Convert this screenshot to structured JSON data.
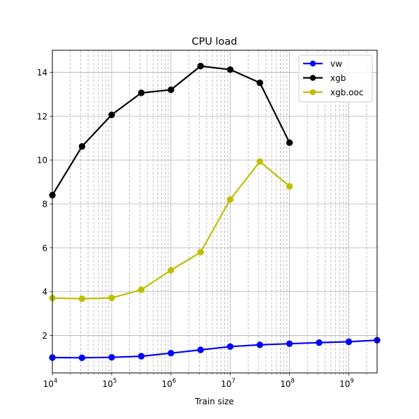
{
  "chart_data": {
    "type": "line",
    "title": "CPU load",
    "xlabel": "Train size",
    "ylabel": "",
    "xscale": "log",
    "xlim": [
      10000,
      3000000000
    ],
    "ylim": [
      0.3,
      15
    ],
    "grid": "major-solid-and-minor-dashed",
    "legend_position": "top-right",
    "yticks": [
      2,
      4,
      6,
      8,
      10,
      12,
      14
    ],
    "ytick_labels": [
      "2",
      "4",
      "6",
      "8",
      "10",
      "12",
      "14"
    ],
    "xticks": [
      {
        "base": "10",
        "exp": "4",
        "value": 10000
      },
      {
        "base": "10",
        "exp": "5",
        "value": 100000
      },
      {
        "base": "10",
        "exp": "6",
        "value": 1000000
      },
      {
        "base": "10",
        "exp": "7",
        "value": 10000000
      },
      {
        "base": "10",
        "exp": "8",
        "value": 100000000
      },
      {
        "base": "10",
        "exp": "9",
        "value": 1000000000
      }
    ],
    "series": [
      {
        "name": "vw",
        "color": "#0000ff",
        "x": [
          10000,
          31600,
          100000,
          316000,
          1000000,
          3160000,
          10000000,
          31600000,
          100000000,
          316000000,
          1000000000,
          3000000000
        ],
        "values": [
          1.0,
          0.99,
          1.01,
          1.06,
          1.2,
          1.35,
          1.5,
          1.58,
          1.63,
          1.68,
          1.72,
          1.79
        ]
      },
      {
        "name": "xgb",
        "color": "#000000",
        "x": [
          10000,
          31600,
          100000,
          316000,
          1000000,
          3160000,
          10000000,
          31600000,
          100000000
        ],
        "values": [
          8.4,
          10.62,
          12.06,
          13.06,
          13.2,
          14.28,
          14.12,
          13.52,
          10.79
        ]
      },
      {
        "name": "xgb.ooc",
        "color": "#bfbf00",
        "x": [
          10000,
          31600,
          100000,
          316000,
          1000000,
          3160000,
          10000000,
          31600000,
          100000000
        ],
        "values": [
          3.71,
          3.68,
          3.72,
          4.09,
          4.98,
          5.8,
          8.2,
          9.93,
          8.8
        ]
      }
    ]
  }
}
